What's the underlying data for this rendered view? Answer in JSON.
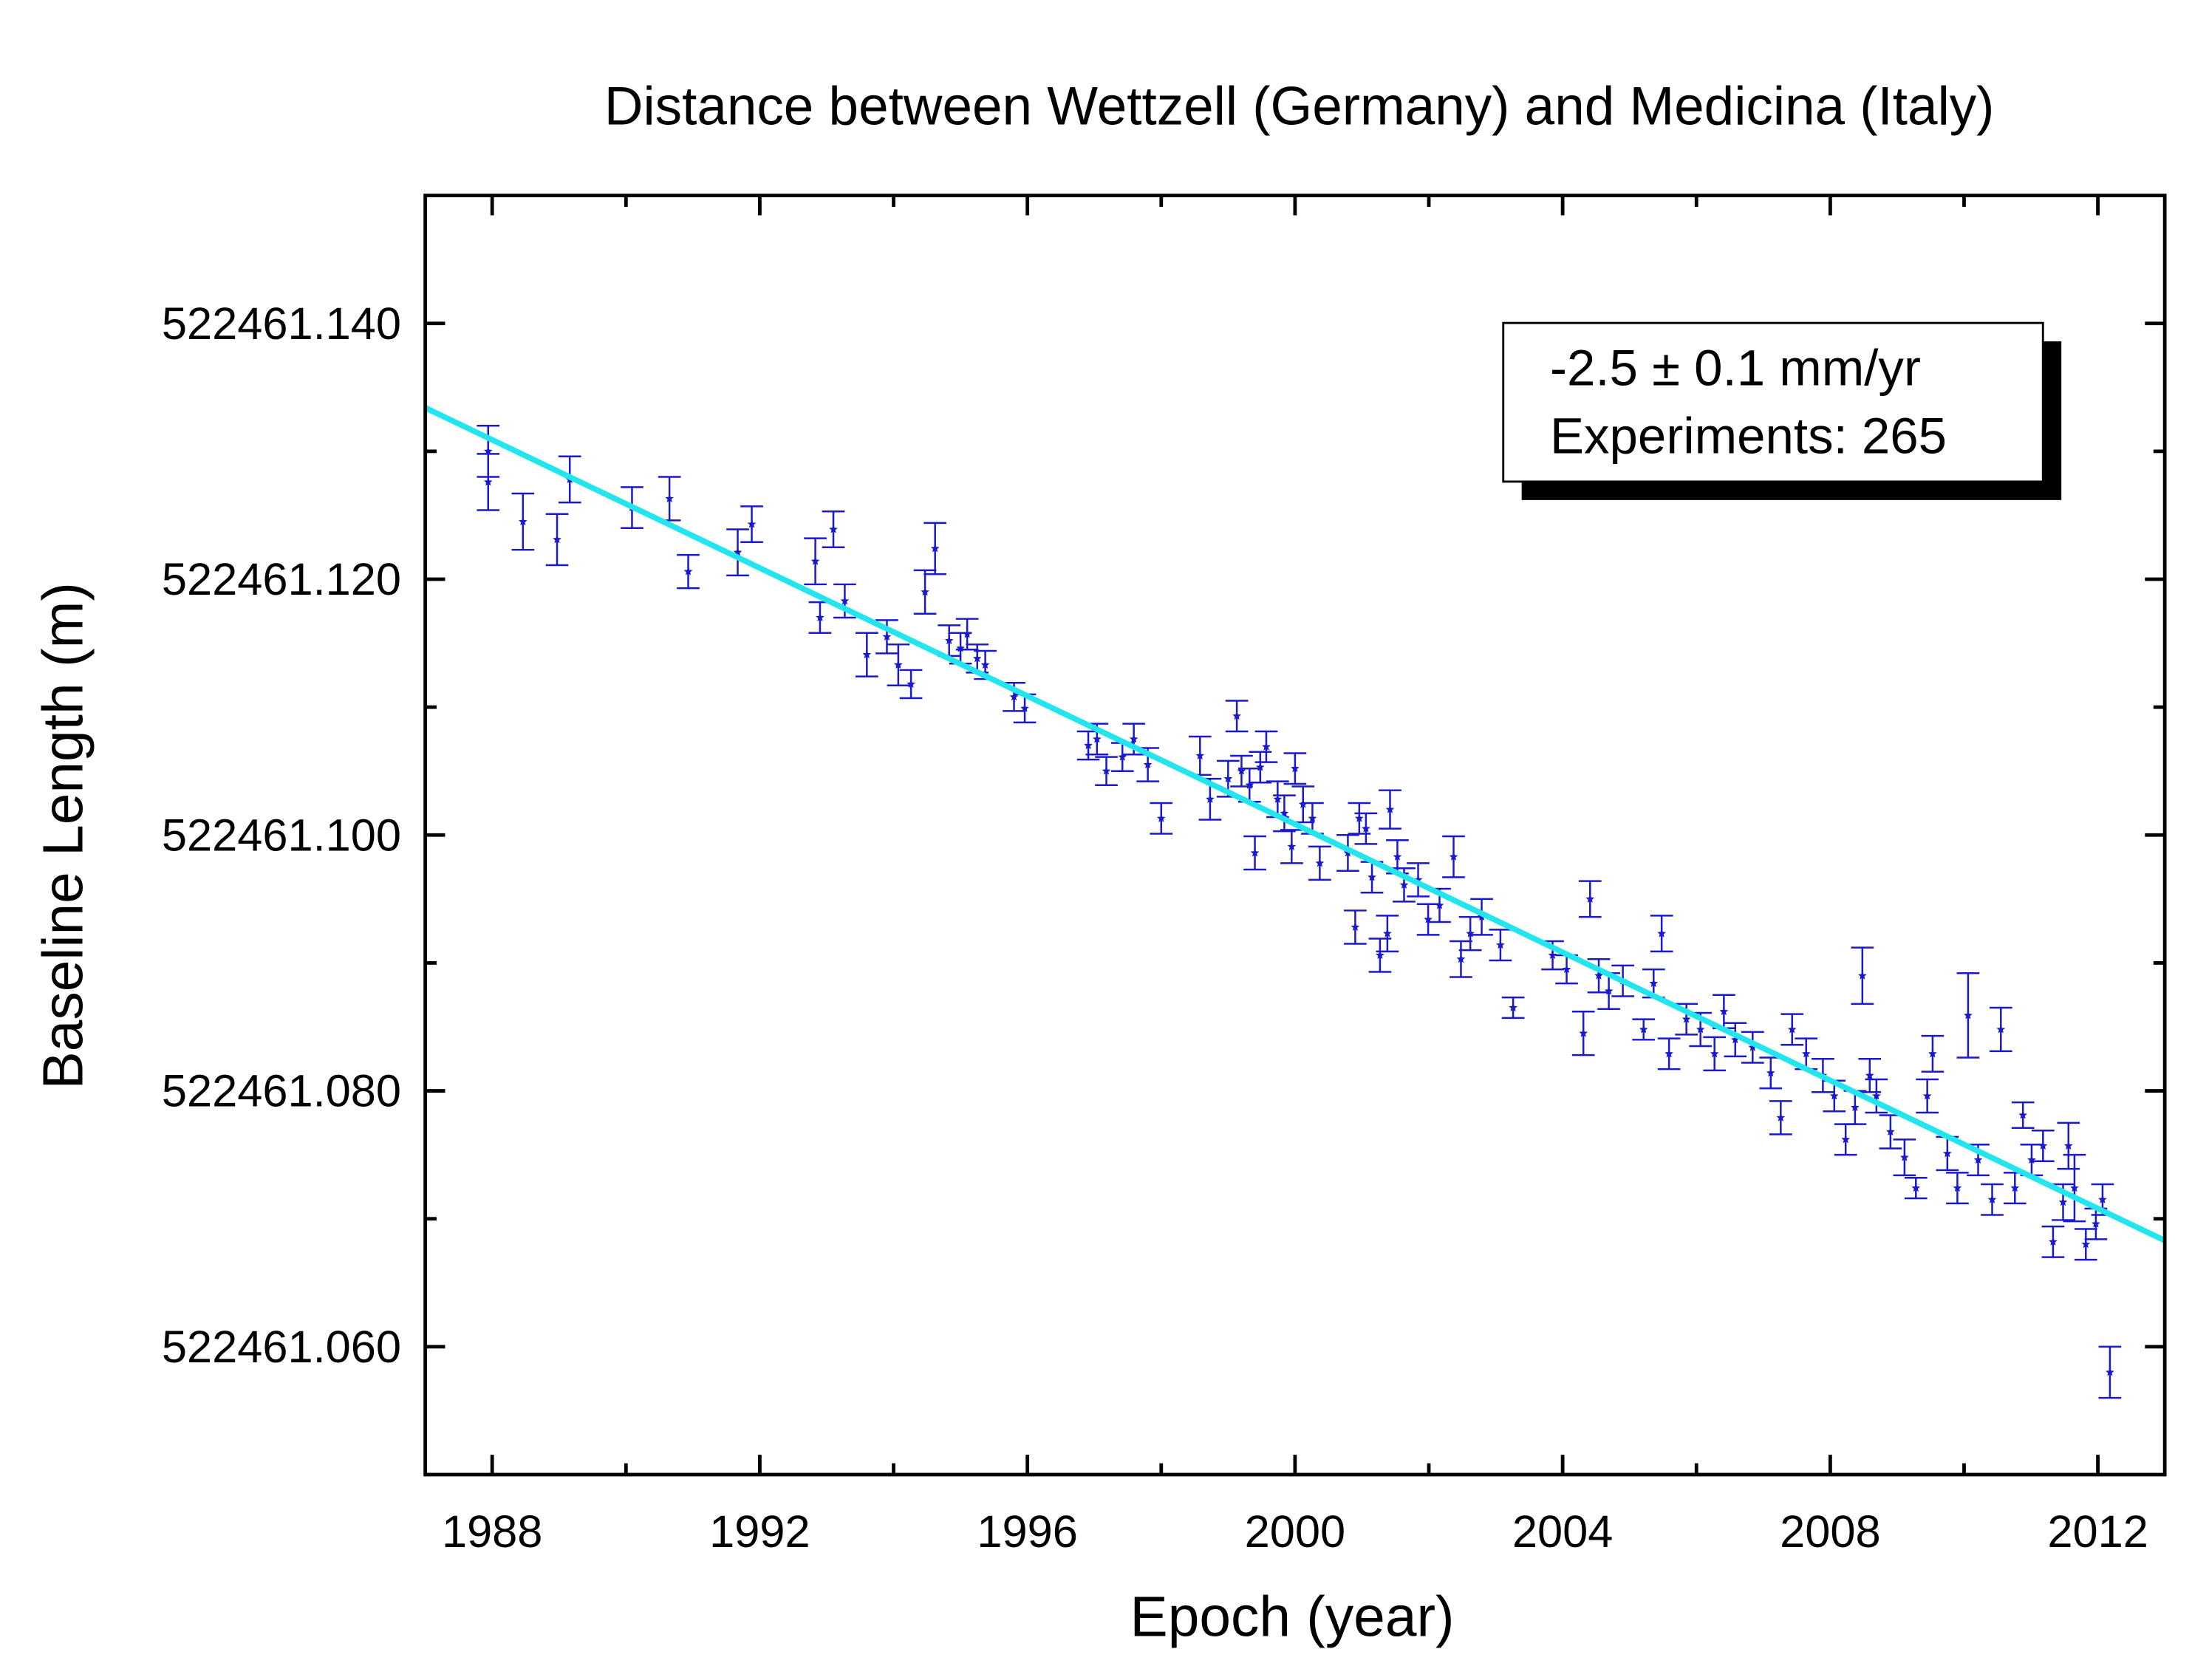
{
  "chart_data": {
    "type": "scatter",
    "title": "Distance between Wettzell (Germany) and Medicina (Italy)",
    "x_label": "Epoch (year)",
    "y_label": "Baseline Length (m)",
    "annotation": [
      "-2.5 ± 0.1 mm/yr",
      "Experiments: 265"
    ],
    "xlim": [
      1987,
      2013
    ],
    "xticks": [
      1988,
      1992,
      1996,
      2000,
      2004,
      2008,
      2012
    ],
    "xminorticks": [
      1990,
      1994,
      1998,
      2002,
      2006,
      2010
    ],
    "ylim": [
      522461.05,
      522461.15
    ],
    "yticks": [
      {
        "value": 522461.06,
        "label": "522461.060"
      },
      {
        "value": 522461.08,
        "label": "522461.080"
      },
      {
        "value": 522461.1,
        "label": "522461.100"
      },
      {
        "value": 522461.12,
        "label": "522461.120"
      },
      {
        "value": 522461.14,
        "label": "522461.140"
      }
    ],
    "yminorticks": [
      522461.07,
      522461.09,
      522461.11,
      522461.13
    ],
    "color": "#1a1acc",
    "fit_color": "#22e5ee",
    "fit": {
      "x": [
        1987,
        2013
      ],
      "values": [
        522461.1334,
        522461.0683
      ]
    },
    "x": [
      1987.94,
      1987.94,
      1988.46,
      1988.97,
      1989.16,
      1990.09,
      1990.65,
      1990.93,
      1991.67,
      1991.88,
      1992.83,
      1992.9,
      1993.1,
      1993.27,
      1993.6,
      1993.9,
      1994.07,
      1994.26,
      1994.47,
      1994.62,
      1994.83,
      1995.0,
      1995.1,
      1995.25,
      1995.37,
      1995.8,
      1995.96,
      1996.91,
      1997.04,
      1997.18,
      1997.42,
      1997.59,
      1997.8,
      1998.0,
      1998.58,
      1998.73,
      1999.0,
      1999.13,
      1999.2,
      1999.32,
      1999.4,
      1999.48,
      1999.57,
      1999.74,
      1999.84,
      1999.95,
      2000.0,
      2000.12,
      2000.26,
      2000.37,
      2000.79,
      2000.9,
      2000.96,
      2001.06,
      2001.15,
      2001.27,
      2001.38,
      2001.42,
      2001.53,
      2001.63,
      2001.84,
      2001.99,
      2002.16,
      2002.37,
      2002.48,
      2002.62,
      2002.79,
      2003.07,
      2003.26,
      2003.85,
      2004.06,
      2004.31,
      2004.41,
      2004.54,
      2004.69,
      2004.9,
      2005.21,
      2005.36,
      2005.48,
      2005.59,
      2005.85,
      2006.06,
      2006.27,
      2006.41,
      2006.58,
      2006.84,
      2007.11,
      2007.26,
      2007.43,
      2007.64,
      2007.89,
      2008.06,
      2008.23,
      2008.37,
      2008.48,
      2008.59,
      2008.69,
      2008.9,
      2009.11,
      2009.28,
      2009.45,
      2009.53,
      2009.75,
      2009.9,
      2010.06,
      2010.21,
      2010.42,
      2010.55,
      2010.76,
      2010.88,
      2011.01,
      2011.18,
      2011.33,
      2011.48,
      2011.56,
      2011.65,
      2011.82,
      2011.97,
      2012.07,
      2012.18
    ],
    "values": [
      522461.13,
      522461.1276,
      522461.1245,
      522461.1231,
      522461.1278,
      522461.1256,
      522461.1263,
      522461.1206,
      522461.1221,
      522461.1243,
      522461.1214,
      522461.117,
      522461.1239,
      522461.1183,
      522461.1141,
      522461.1155,
      522461.1133,
      522461.1118,
      522461.119,
      522461.1224,
      522461.1152,
      522461.1146,
      522461.1157,
      522461.1138,
      522461.1133,
      522461.1108,
      522461.1099,
      522461.107,
      522461.1075,
      522461.105,
      522461.1061,
      522461.1075,
      522461.1055,
      522461.1013,
      522461.1062,
      522461.1028,
      522461.1044,
      522461.1093,
      522461.105,
      522461.1039,
      522461.0986,
      522461.1053,
      522461.1069,
      522461.1028,
      522461.1017,
      522461.0991,
      522461.1052,
      522461.1024,
      522461.1013,
      522461.0978,
      522461.0986,
      522461.0928,
      522461.1013,
      522461.1005,
      522461.0967,
      522461.0906,
      522461.0923,
      522461.102,
      522461.0983,
      522461.0961,
      522461.0965,
      522461.0934,
      522461.0945,
      522461.0983,
      522461.0903,
      522461.0923,
      522461.0936,
      522461.0914,
      522461.0865,
      522461.0906,
      522461.0895,
      522461.0845,
      522461.095,
      522461.089,
      522461.0878,
      522461.0886,
      522461.0848,
      522461.0884,
      522461.0923,
      522461.0829,
      522461.0856,
      522461.0848,
      522461.0829,
      522461.0862,
      522461.084,
      522461.0834,
      522461.0814,
      522461.0779,
      522461.0848,
      522461.0829,
      522461.0812,
      522461.0796,
      522461.0762,
      522461.0787,
      522461.089,
      522461.0812,
      522461.0796,
      522461.0768,
      522461.0748,
      522461.0724,
      522461.0796,
      522461.0829,
      522461.0751,
      522461.0724,
      522461.0859,
      522461.0746,
      522461.0715,
      522461.0848,
      522461.0724,
      522461.0781,
      522461.0746,
      522461.0757,
      522461.0682,
      522461.0713,
      522461.0757,
      522461.0724,
      522461.068,
      522461.0696,
      522461.0715,
      522461.058
    ],
    "errors": [
      0.002,
      0.0022,
      0.0022,
      0.002,
      0.0018,
      0.0016,
      0.0017,
      0.0013,
      0.0018,
      0.0014,
      0.0018,
      0.0012,
      0.0014,
      0.0013,
      0.0017,
      0.0013,
      0.0016,
      0.0011,
      0.0017,
      0.002,
      0.0012,
      0.0012,
      0.0012,
      0.0011,
      0.0011,
      0.0011,
      0.0011,
      0.0011,
      0.0012,
      0.0011,
      0.0011,
      0.0012,
      0.0013,
      0.0012,
      0.0015,
      0.0016,
      0.0014,
      0.0012,
      0.0012,
      0.0013,
      0.0013,
      0.0012,
      0.0012,
      0.0014,
      0.0014,
      0.0013,
      0.0012,
      0.0014,
      0.0012,
      0.0013,
      0.0014,
      0.0013,
      0.0012,
      0.0012,
      0.0012,
      0.0013,
      0.0014,
      0.0015,
      0.0013,
      0.0013,
      0.0013,
      0.0012,
      0.0013,
      0.0016,
      0.0014,
      0.0013,
      0.0014,
      0.0012,
      0.0008,
      0.0011,
      0.0011,
      0.0017,
      0.0014,
      0.0013,
      0.0014,
      0.0012,
      0.0008,
      0.0011,
      0.0014,
      0.0012,
      0.0012,
      0.0013,
      0.0013,
      0.0013,
      0.0013,
      0.0012,
      0.0012,
      0.0013,
      0.0012,
      0.0012,
      0.0013,
      0.0012,
      0.0012,
      0.0013,
      0.0022,
      0.0013,
      0.0013,
      0.0013,
      0.0014,
      0.0008,
      0.0013,
      0.0014,
      0.0013,
      0.0012,
      0.0033,
      0.0012,
      0.0012,
      0.0017,
      0.0012,
      0.001,
      0.0012,
      0.0012,
      0.0012,
      0.0014,
      0.0018,
      0.0026,
      0.0012,
      0.0012,
      0.0012,
      0.002
    ]
  }
}
